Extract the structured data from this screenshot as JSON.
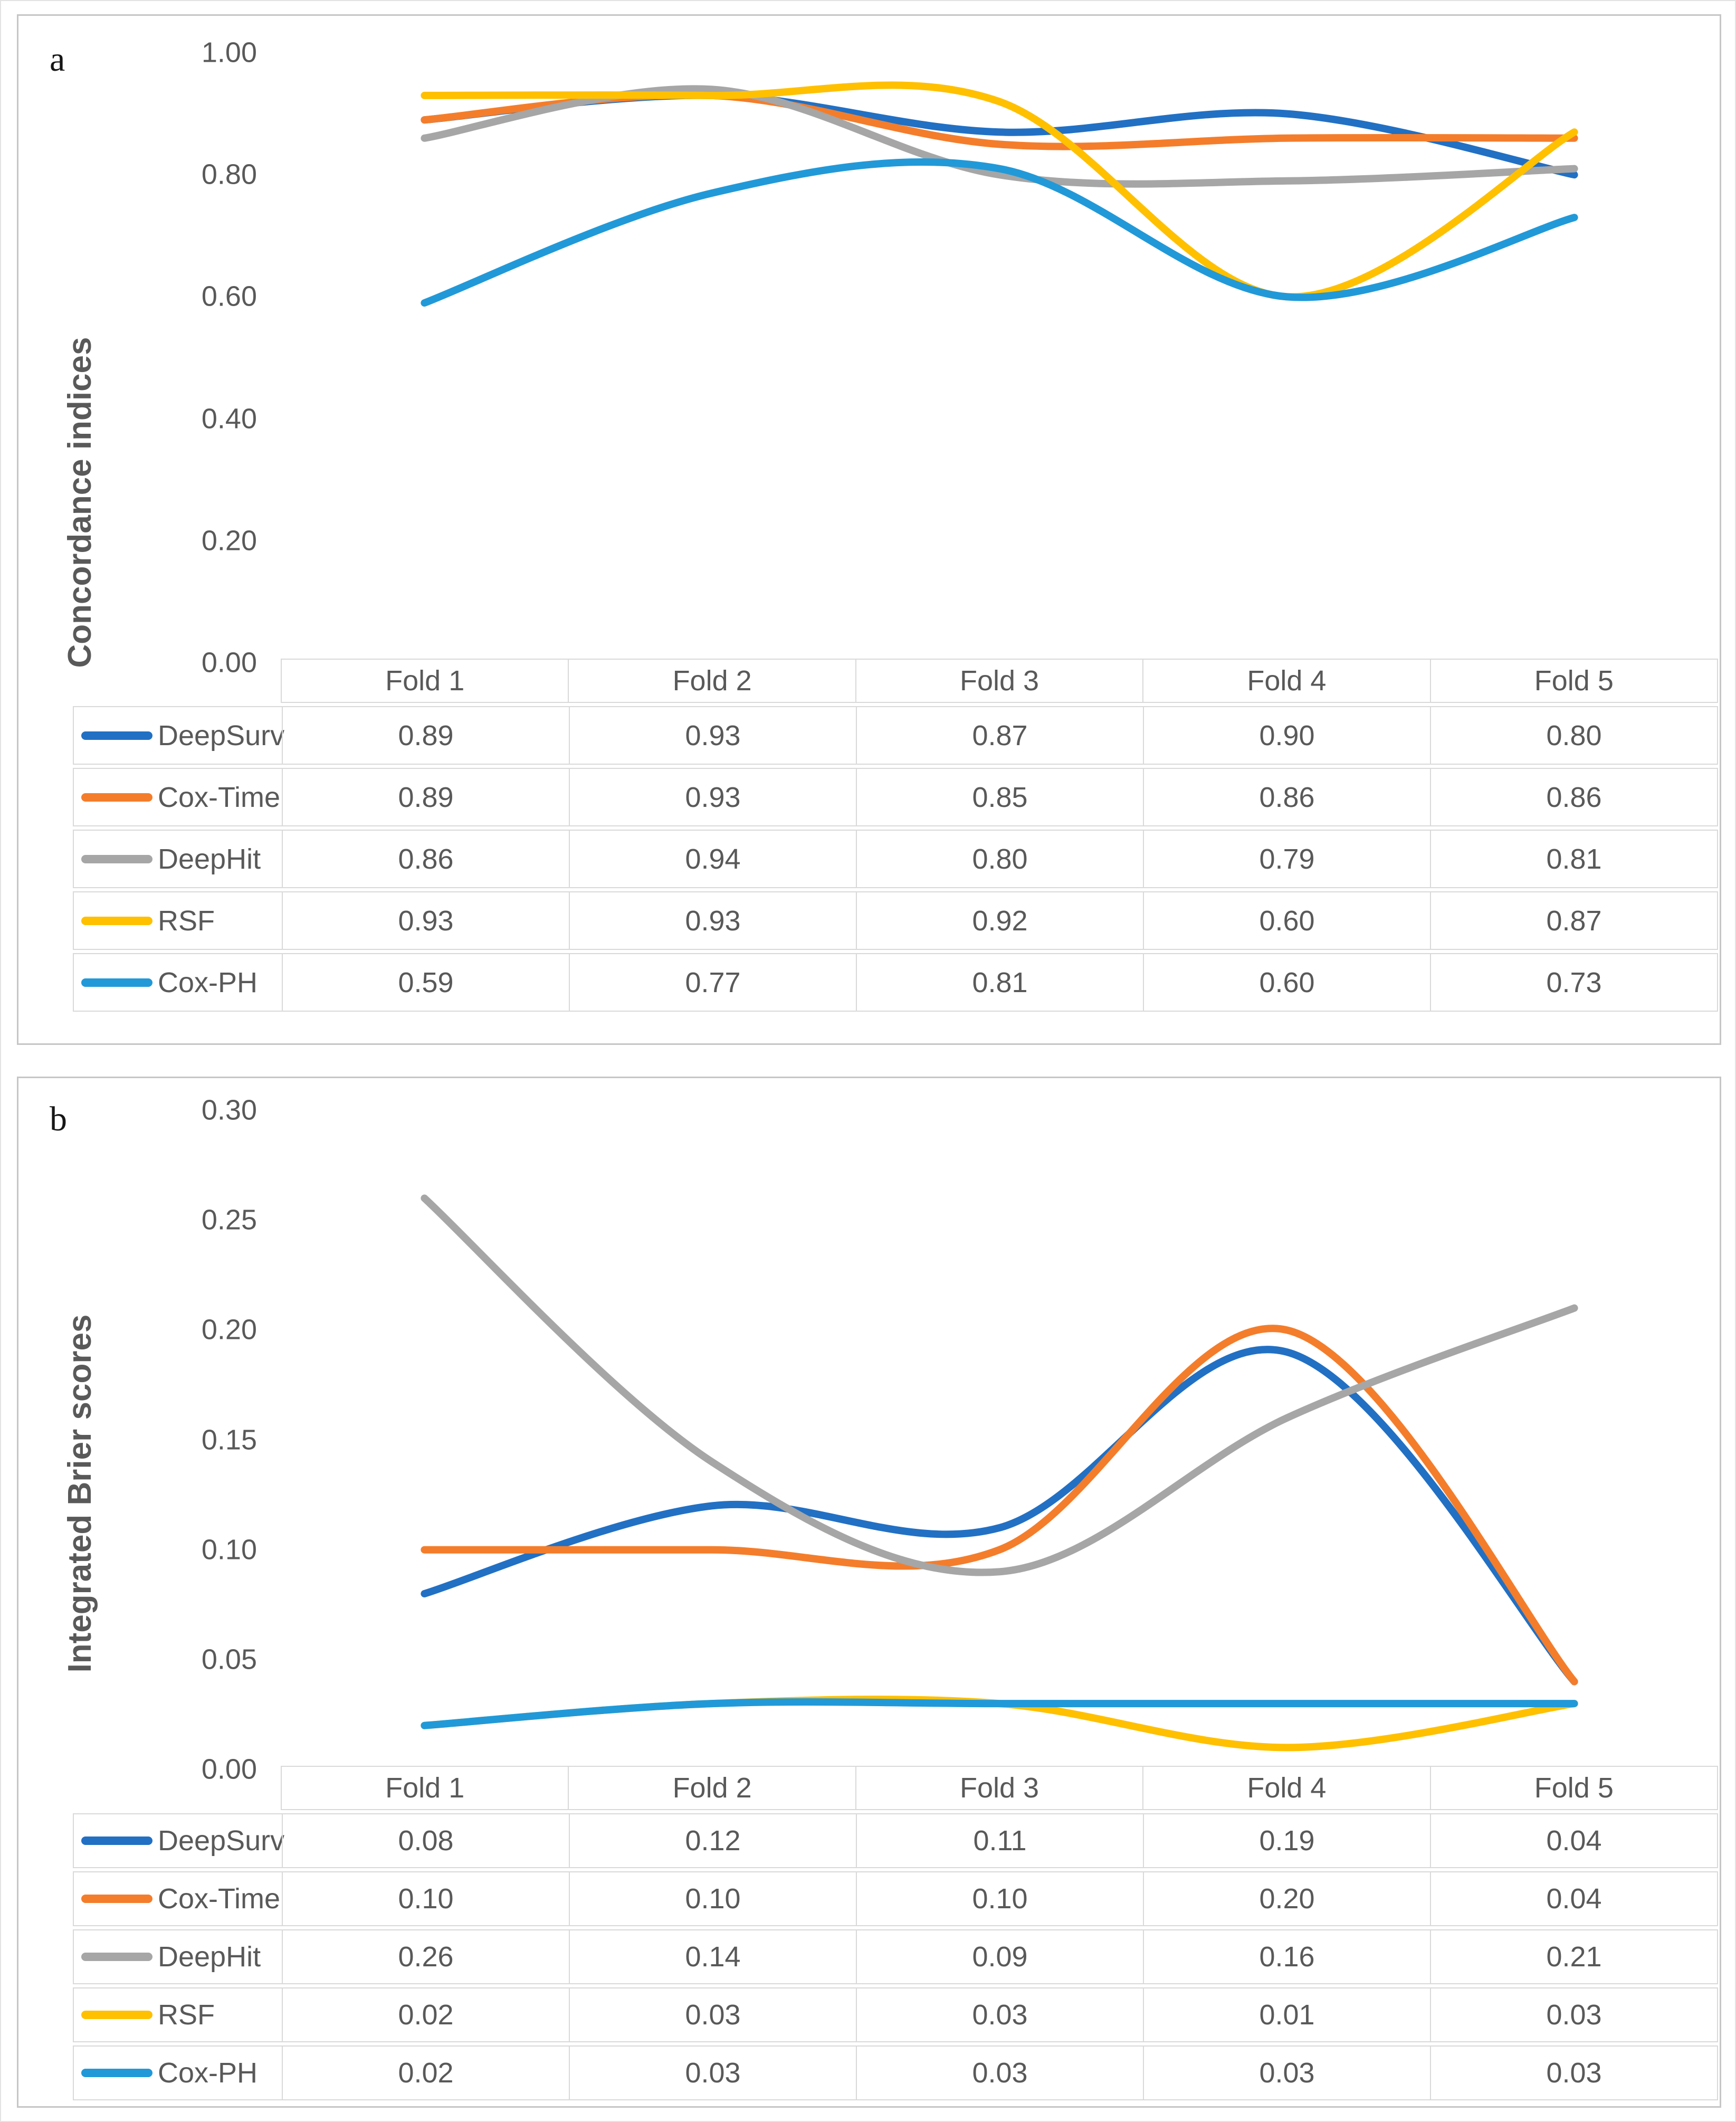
{
  "figure": {
    "panels": [
      {
        "letter": "a",
        "y_axis_title": "Concordance indices"
      },
      {
        "letter": "b",
        "y_axis_title": "Integrated Brier scores"
      }
    ]
  },
  "chart_data": [
    {
      "type": "line",
      "smooth": true,
      "panel_letter": "a",
      "title": "",
      "xlabel": "",
      "ylabel": "Concordance indices",
      "categories": [
        "Fold 1",
        "Fold 2",
        "Fold 3",
        "Fold 4",
        "Fold 5"
      ],
      "series": [
        {
          "name": "DeepSurv",
          "color": "#2170C4",
          "values": [
            0.89,
            0.93,
            0.87,
            0.9,
            0.8
          ]
        },
        {
          "name": "Cox-Time",
          "color": "#F47D2B",
          "values": [
            0.89,
            0.93,
            0.85,
            0.86,
            0.86
          ]
        },
        {
          "name": "DeepHit",
          "color": "#A6A6A6",
          "values": [
            0.86,
            0.94,
            0.8,
            0.79,
            0.81
          ]
        },
        {
          "name": "RSF",
          "color": "#FFC000",
          "values": [
            0.93,
            0.93,
            0.92,
            0.6,
            0.87
          ]
        },
        {
          "name": "Cox-PH",
          "color": "#2199D8",
          "values": [
            0.59,
            0.77,
            0.81,
            0.6,
            0.73
          ]
        }
      ],
      "ylim": [
        0.0,
        1.0
      ],
      "ytick_step": 0.2,
      "ytick_labels": [
        "1.00",
        "0.80",
        "0.60",
        "0.40",
        "0.20",
        "0.00"
      ],
      "grid": false,
      "legend_position": "table-left",
      "value_format": "0.00"
    },
    {
      "type": "line",
      "smooth": true,
      "panel_letter": "b",
      "title": "",
      "xlabel": "",
      "ylabel": "Integrated Brier scores",
      "categories": [
        "Fold 1",
        "Fold 2",
        "Fold 3",
        "Fold 4",
        "Fold 5"
      ],
      "series": [
        {
          "name": "DeepSurv",
          "color": "#2170C4",
          "values": [
            0.08,
            0.12,
            0.11,
            0.19,
            0.04
          ]
        },
        {
          "name": "Cox-Time",
          "color": "#F47D2B",
          "values": [
            0.1,
            0.1,
            0.1,
            0.2,
            0.04
          ]
        },
        {
          "name": "DeepHit",
          "color": "#A6A6A6",
          "values": [
            0.26,
            0.14,
            0.09,
            0.16,
            0.21
          ]
        },
        {
          "name": "RSF",
          "color": "#FFC000",
          "values": [
            0.02,
            0.03,
            0.03,
            0.01,
            0.03
          ]
        },
        {
          "name": "Cox-PH",
          "color": "#2199D8",
          "values": [
            0.02,
            0.03,
            0.03,
            0.03,
            0.03
          ]
        }
      ],
      "ylim": [
        0.0,
        0.3
      ],
      "ytick_step": 0.05,
      "ytick_labels": [
        "0.30",
        "0.25",
        "0.20",
        "0.15",
        "0.10",
        "0.05",
        "0.00"
      ],
      "grid": false,
      "legend_position": "table-left",
      "value_format": "0.00"
    }
  ]
}
